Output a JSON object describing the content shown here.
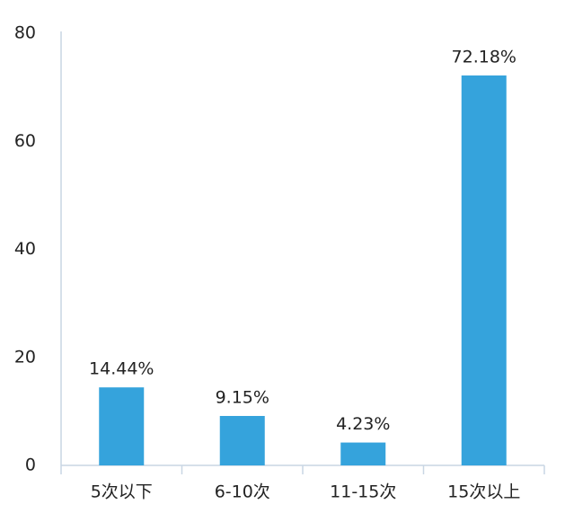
{
  "chart_data": {
    "type": "bar",
    "categories": [
      "5次以下",
      "6-10次",
      "11-15次",
      "15次以上"
    ],
    "values": [
      14.44,
      9.15,
      4.23,
      72.18
    ],
    "value_labels": [
      "14.44%",
      "9.15%",
      "4.23%",
      "72.18%"
    ],
    "color": "#35a3dc",
    "ylim": [
      0,
      80
    ],
    "yticks": [
      0,
      20,
      40,
      60,
      80
    ],
    "grid": false
  }
}
